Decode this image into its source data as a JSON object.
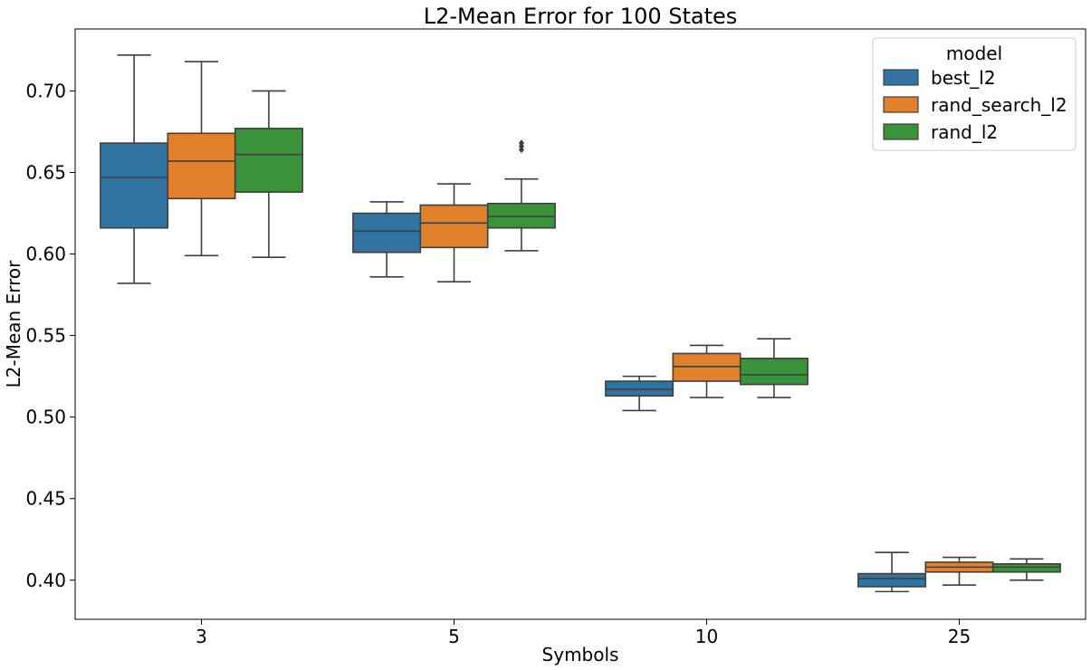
{
  "chart_data": {
    "type": "box",
    "title": "L2-Mean Error for 100 States",
    "xlabel": "Symbols",
    "ylabel": "L2-Mean Error",
    "ylim": [
      0.376,
      0.738
    ],
    "yticks": [
      "0.40",
      "0.45",
      "0.50",
      "0.55",
      "0.60",
      "0.65",
      "0.70"
    ],
    "categories": [
      "3",
      "5",
      "10",
      "25"
    ],
    "grid": false,
    "legend": {
      "title": "model",
      "placement": "top-right"
    },
    "series": [
      {
        "name": "best_l2",
        "color": "#3274a1",
        "boxes": [
          {
            "whisker_low": 0.582,
            "q1": 0.616,
            "median": 0.647,
            "q3": 0.668,
            "whisker_high": 0.722,
            "outliers": []
          },
          {
            "whisker_low": 0.586,
            "q1": 0.601,
            "median": 0.614,
            "q3": 0.625,
            "whisker_high": 0.632,
            "outliers": []
          },
          {
            "whisker_low": 0.504,
            "q1": 0.513,
            "median": 0.517,
            "q3": 0.522,
            "whisker_high": 0.525,
            "outliers": []
          },
          {
            "whisker_low": 0.393,
            "q1": 0.396,
            "median": 0.401,
            "q3": 0.404,
            "whisker_high": 0.417,
            "outliers": []
          }
        ]
      },
      {
        "name": "rand_search_l2",
        "color": "#e1812c",
        "boxes": [
          {
            "whisker_low": 0.599,
            "q1": 0.634,
            "median": 0.657,
            "q3": 0.674,
            "whisker_high": 0.718,
            "outliers": []
          },
          {
            "whisker_low": 0.583,
            "q1": 0.604,
            "median": 0.619,
            "q3": 0.63,
            "whisker_high": 0.643,
            "outliers": []
          },
          {
            "whisker_low": 0.512,
            "q1": 0.522,
            "median": 0.531,
            "q3": 0.539,
            "whisker_high": 0.544,
            "outliers": []
          },
          {
            "whisker_low": 0.397,
            "q1": 0.405,
            "median": 0.408,
            "q3": 0.411,
            "whisker_high": 0.414,
            "outliers": []
          }
        ]
      },
      {
        "name": "rand_l2",
        "color": "#3a923a",
        "boxes": [
          {
            "whisker_low": 0.598,
            "q1": 0.638,
            "median": 0.661,
            "q3": 0.677,
            "whisker_high": 0.7,
            "outliers": []
          },
          {
            "whisker_low": 0.602,
            "q1": 0.616,
            "median": 0.623,
            "q3": 0.631,
            "whisker_high": 0.646,
            "outliers": [
              0.664,
              0.666,
              0.668
            ]
          },
          {
            "whisker_low": 0.512,
            "q1": 0.52,
            "median": 0.526,
            "q3": 0.536,
            "whisker_high": 0.548,
            "outliers": []
          },
          {
            "whisker_low": 0.4,
            "q1": 0.405,
            "median": 0.408,
            "q3": 0.41,
            "whisker_high": 0.413,
            "outliers": []
          }
        ]
      }
    ]
  }
}
